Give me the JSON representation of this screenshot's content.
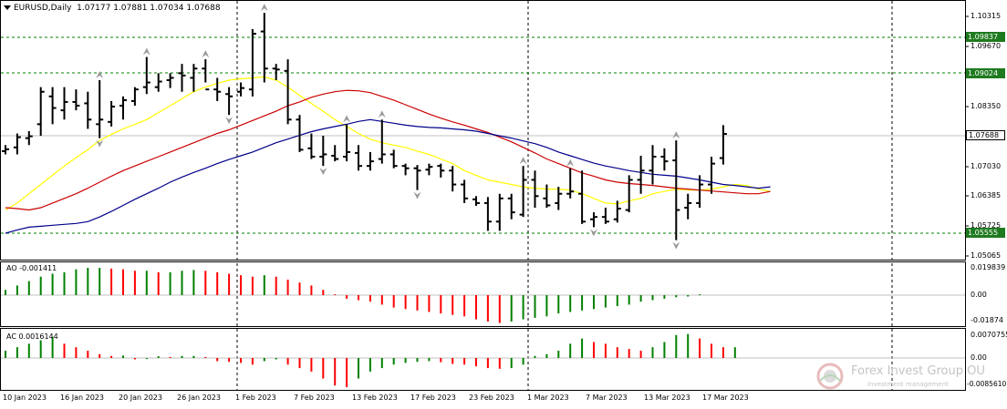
{
  "window": {
    "symbol_title": "EURUSD,Daily",
    "ohlc_text": "1.07177 1.07881 1.07034 1.07688"
  },
  "levels": {
    "level_high": "1.09837",
    "level_mid": "1.09024",
    "level_last": "1.07688",
    "level_low": "1.05555"
  },
  "price_axis": {
    "ticks": [
      "1.10315",
      "1.09670",
      "1.08350",
      "1.07030",
      "1.06385",
      "1.05725",
      "1.05065"
    ]
  },
  "ao": {
    "label": "AO -0.001411",
    "ticks": [
      "0.019839",
      "0.00",
      "-0.01874"
    ]
  },
  "ac": {
    "label": "AC 0.0016144",
    "ticks": [
      "0.0070755",
      "0.00",
      "-0.0085610"
    ]
  },
  "time_axis": {
    "dates": [
      "10 Jan 2023",
      "16 Jan 2023",
      "20 Jan 2023",
      "26 Jan 2023",
      "1 Feb 2023",
      "7 Feb 2023",
      "13 Feb 2023",
      "17 Feb 2023",
      "23 Feb 2023",
      "1 Mar 2023",
      "7 Mar 2023",
      "13 Mar 2023",
      "17 Mar 2023"
    ]
  },
  "watermark": {
    "name": "Forex Invest Group OU",
    "tagline": "Investment management"
  },
  "colors": {
    "bars": "#000000",
    "ma_fast": "#ffff00",
    "ma_mid": "#cc0000",
    "ma_slow": "#00008b",
    "ao_up": "#008000",
    "ao_down": "#ff0000",
    "badge_bg": "#1e7a1e",
    "level_line": "#008000",
    "grid": "#c0c0c0"
  },
  "chart_data": {
    "type": "ohlc",
    "series": [
      {
        "name": "EURUSD,Daily",
        "values": [
          {
            "o": 1.0732,
            "h": 1.0745,
            "l": 1.0725,
            "c": 1.0736
          },
          {
            "o": 1.074,
            "h": 1.077,
            "l": 1.0725,
            "c": 1.0762
          },
          {
            "o": 1.076,
            "h": 1.0775,
            "l": 1.0745,
            "c": 1.0764
          },
          {
            "o": 1.079,
            "h": 1.087,
            "l": 1.0765,
            "c": 1.086
          },
          {
            "o": 1.085,
            "h": 1.087,
            "l": 1.079,
            "c": 1.0825
          },
          {
            "o": 1.082,
            "h": 1.087,
            "l": 1.08,
            "c": 1.0838
          },
          {
            "o": 1.0838,
            "h": 1.0865,
            "l": 1.082,
            "c": 1.083
          },
          {
            "o": 1.0835,
            "h": 1.086,
            "l": 1.078,
            "c": 1.08
          },
          {
            "o": 1.079,
            "h": 1.0885,
            "l": 1.076,
            "c": 1.08
          },
          {
            "o": 1.0795,
            "h": 1.084,
            "l": 1.0785,
            "c": 1.0828
          },
          {
            "o": 1.083,
            "h": 1.085,
            "l": 1.08,
            "c": 1.0842
          },
          {
            "o": 1.084,
            "h": 1.087,
            "l": 1.083,
            "c": 1.0865
          },
          {
            "o": 1.087,
            "h": 1.0935,
            "l": 1.0855,
            "c": 1.088
          },
          {
            "o": 1.087,
            "h": 1.09,
            "l": 1.086,
            "c": 1.0882
          },
          {
            "o": 1.0885,
            "h": 1.09,
            "l": 1.0868,
            "c": 1.089
          },
          {
            "o": 1.09,
            "h": 1.092,
            "l": 1.086,
            "c": 1.0895
          },
          {
            "o": 1.089,
            "h": 1.092,
            "l": 1.086,
            "c": 1.091
          },
          {
            "o": 1.091,
            "h": 1.093,
            "l": 1.088,
            "c": 1.0865
          },
          {
            "o": 1.0865,
            "h": 1.089,
            "l": 1.084,
            "c": 1.086
          },
          {
            "o": 1.0855,
            "h": 1.087,
            "l": 1.081,
            "c": 1.085
          },
          {
            "o": 1.086,
            "h": 1.088,
            "l": 1.085,
            "c": 1.0868
          },
          {
            "o": 1.0865,
            "h": 1.0995,
            "l": 1.085,
            "c": 1.0985
          },
          {
            "o": 1.099,
            "h": 1.103,
            "l": 1.088,
            "c": 1.091
          },
          {
            "o": 1.091,
            "h": 1.092,
            "l": 1.0885,
            "c": 1.0908
          },
          {
            "o": 1.0905,
            "h": 1.093,
            "l": 1.079,
            "c": 1.08
          },
          {
            "o": 1.08,
            "h": 1.081,
            "l": 1.073,
            "c": 1.0735
          },
          {
            "o": 1.0738,
            "h": 1.077,
            "l": 1.0715,
            "c": 1.072
          },
          {
            "o": 1.072,
            "h": 1.0765,
            "l": 1.07,
            "c": 1.0725
          },
          {
            "o": 1.0722,
            "h": 1.0745,
            "l": 1.071,
            "c": 1.0715
          },
          {
            "o": 1.072,
            "h": 1.079,
            "l": 1.071,
            "c": 1.073
          },
          {
            "o": 1.0728,
            "h": 1.0745,
            "l": 1.069,
            "c": 1.07
          },
          {
            "o": 1.07,
            "h": 1.073,
            "l": 1.069,
            "c": 1.071
          },
          {
            "o": 1.0715,
            "h": 1.08,
            "l": 1.0705,
            "c": 1.0725
          },
          {
            "o": 1.0725,
            "h": 1.0735,
            "l": 1.0695,
            "c": 1.07
          },
          {
            "o": 1.07,
            "h": 1.0705,
            "l": 1.068,
            "c": 1.0695
          },
          {
            "o": 1.0695,
            "h": 1.0702,
            "l": 1.0648,
            "c": 1.069
          },
          {
            "o": 1.0692,
            "h": 1.0705,
            "l": 1.068,
            "c": 1.0698
          },
          {
            "o": 1.07,
            "h": 1.0705,
            "l": 1.0675,
            "c": 1.069
          },
          {
            "o": 1.069,
            "h": 1.07,
            "l": 1.0645,
            "c": 1.066
          },
          {
            "o": 1.066,
            "h": 1.067,
            "l": 1.062,
            "c": 1.063
          },
          {
            "o": 1.0628,
            "h": 1.0635,
            "l": 1.0614,
            "c": 1.062
          },
          {
            "o": 1.062,
            "h": 1.0633,
            "l": 1.056,
            "c": 1.058
          },
          {
            "o": 1.058,
            "h": 1.064,
            "l": 1.056,
            "c": 1.063
          },
          {
            "o": 1.063,
            "h": 1.064,
            "l": 1.0585,
            "c": 1.06
          },
          {
            "o": 1.0595,
            "h": 1.07,
            "l": 1.059,
            "c": 1.067
          },
          {
            "o": 1.067,
            "h": 1.069,
            "l": 1.061,
            "c": 1.0635
          },
          {
            "o": 1.063,
            "h": 1.066,
            "l": 1.061,
            "c": 1.0615
          },
          {
            "o": 1.062,
            "h": 1.0655,
            "l": 1.0605,
            "c": 1.064
          },
          {
            "o": 1.064,
            "h": 1.0695,
            "l": 1.063,
            "c": 1.0645
          },
          {
            "o": 1.064,
            "h": 1.069,
            "l": 1.0575,
            "c": 1.058
          },
          {
            "o": 1.0585,
            "h": 1.06,
            "l": 1.0568,
            "c": 1.059
          },
          {
            "o": 1.059,
            "h": 1.061,
            "l": 1.0575,
            "c": 1.058
          },
          {
            "o": 1.0585,
            "h": 1.0625,
            "l": 1.0578,
            "c": 1.0608
          },
          {
            "o": 1.0605,
            "h": 1.068,
            "l": 1.06,
            "c": 1.067
          },
          {
            "o": 1.067,
            "h": 1.0722,
            "l": 1.064,
            "c": 1.069
          },
          {
            "o": 1.069,
            "h": 1.0745,
            "l": 1.066,
            "c": 1.072
          },
          {
            "o": 1.072,
            "h": 1.0738,
            "l": 1.069,
            "c": 1.071
          },
          {
            "o": 1.0712,
            "h": 1.0755,
            "l": 1.054,
            "c": 1.0605
          },
          {
            "o": 1.061,
            "h": 1.064,
            "l": 1.0585,
            "c": 1.062
          },
          {
            "o": 1.062,
            "h": 1.068,
            "l": 1.061,
            "c": 1.066
          },
          {
            "o": 1.066,
            "h": 1.072,
            "l": 1.064,
            "c": 1.0705
          },
          {
            "o": 1.0717,
            "h": 1.0788,
            "l": 1.0703,
            "c": 1.0769
          }
        ]
      }
    ],
    "moving_averages": [
      {
        "name": "fast",
        "values": [
          1.0605,
          1.062,
          1.064,
          1.066,
          1.068,
          1.07,
          1.0718,
          1.0735,
          1.0755,
          1.0768,
          1.078,
          1.079,
          1.08,
          1.0815,
          1.083,
          1.0845,
          1.086,
          1.087,
          1.0878,
          1.0885,
          1.0888,
          1.089,
          1.0892,
          1.0885,
          1.087,
          1.0852,
          1.0835,
          1.0818,
          1.08,
          1.0785,
          1.077,
          1.0758,
          1.075,
          1.0745,
          1.074,
          1.0732,
          1.0725,
          1.0715,
          1.0705,
          1.069,
          1.068,
          1.067,
          1.0665,
          1.066,
          1.0655,
          1.0652,
          1.065,
          1.065,
          1.0648,
          1.064,
          1.063,
          1.062,
          1.0618,
          1.0625,
          1.063,
          1.064,
          1.0645,
          1.065,
          1.0648,
          1.0648,
          1.065,
          1.0655,
          1.066,
          1.0658,
          1.065,
          1.0645
        ]
      },
      {
        "name": "mid",
        "values": [
          1.061,
          1.0608,
          1.0605,
          1.061,
          1.062,
          1.063,
          1.064,
          1.0652,
          1.0665,
          1.0678,
          1.069,
          1.07,
          1.071,
          1.072,
          1.073,
          1.074,
          1.075,
          1.076,
          1.077,
          1.0778,
          1.0788,
          1.0798,
          1.0808,
          1.0818,
          1.083,
          1.0838,
          1.0848,
          1.0855,
          1.086,
          1.0863,
          1.0862,
          1.0858,
          1.085,
          1.0842,
          1.0832,
          1.0822,
          1.0812,
          1.0803,
          1.0795,
          1.0788,
          1.078,
          1.0772,
          1.0762,
          1.0752,
          1.074,
          1.0728,
          1.0715,
          1.0705,
          1.0695,
          1.0685,
          1.0678,
          1.067,
          1.0665,
          1.0662,
          1.066,
          1.0658,
          1.0655,
          1.0652,
          1.065,
          1.0648,
          1.0646,
          1.0644,
          1.0642,
          1.064,
          1.064,
          1.0645
        ]
      },
      {
        "name": "slow",
        "values": [
          1.0555,
          1.0562,
          1.0568,
          1.057,
          1.0572,
          1.0574,
          1.0576,
          1.058,
          1.059,
          1.0602,
          1.0615,
          1.0628,
          1.064,
          1.0652,
          1.0665,
          1.0676,
          1.0686,
          1.0695,
          1.0705,
          1.0714,
          1.0722,
          1.073,
          1.074,
          1.075,
          1.0758,
          1.0766,
          1.0774,
          1.078,
          1.0785,
          1.079,
          1.0796,
          1.08,
          1.0796,
          1.0792,
          1.0788,
          1.0785,
          1.0783,
          1.0782,
          1.078,
          1.0778,
          1.0775,
          1.077,
          1.0765,
          1.076,
          1.0754,
          1.0748,
          1.074,
          1.073,
          1.0722,
          1.0714,
          1.0706,
          1.07,
          1.0695,
          1.069,
          1.0686,
          1.0682,
          1.068,
          1.0678,
          1.0674,
          1.067,
          1.0665,
          1.066,
          1.0658,
          1.0655,
          1.0652,
          1.0655
        ]
      }
    ],
    "ao_values": [
      0.004,
      0.007,
      0.01,
      0.013,
      0.015,
      0.016,
      0.018,
      0.019,
      0.019,
      0.0185,
      0.018,
      0.017,
      0.017,
      0.016,
      0.016,
      0.017,
      0.0175,
      0.017,
      0.016,
      0.015,
      0.014,
      0.013,
      0.014,
      0.013,
      0.011,
      0.009,
      0.007,
      0.004,
      0.001,
      -0.002,
      -0.003,
      -0.004,
      -0.006,
      -0.008,
      -0.009,
      -0.01,
      -0.011,
      -0.012,
      -0.013,
      -0.014,
      -0.016,
      -0.0175,
      -0.0185,
      -0.0175,
      -0.016,
      -0.015,
      -0.014,
      -0.012,
      -0.011,
      -0.01,
      -0.009,
      -0.008,
      -0.007,
      -0.006,
      -0.004,
      -0.003,
      -0.002,
      -0.001,
      -0.0005,
      0.001
    ],
    "ac_values": [
      0.002,
      0.003,
      0.004,
      0.005,
      0.006,
      0.004,
      0.003,
      0.002,
      0.001,
      0.0005,
      0.0006,
      -0.0005,
      -0.0004,
      0.0004,
      0.0002,
      0.0005,
      0.0005,
      0.0002,
      -0.001,
      -0.0012,
      -0.0015,
      -0.002,
      -0.001,
      -0.0005,
      -0.002,
      -0.003,
      -0.004,
      -0.006,
      -0.008,
      -0.0085,
      -0.006,
      -0.004,
      -0.003,
      -0.002,
      -0.0015,
      -0.0012,
      -0.001,
      -0.0013,
      -0.0018,
      -0.002,
      -0.0025,
      -0.003,
      -0.0032,
      -0.003,
      -0.002,
      0.0005,
      0.001,
      0.002,
      0.004,
      0.0055,
      0.0045,
      0.004,
      0.003,
      0.0025,
      0.002,
      0.003,
      0.0045,
      0.0065,
      0.0068,
      0.0055,
      0.004,
      0.003,
      0.003
    ],
    "ylim_price": [
      1.05,
      1.105
    ],
    "ylim_ao": [
      -0.02,
      0.0215
    ],
    "ylim_ac": [
      -0.009,
      0.0075
    ]
  }
}
